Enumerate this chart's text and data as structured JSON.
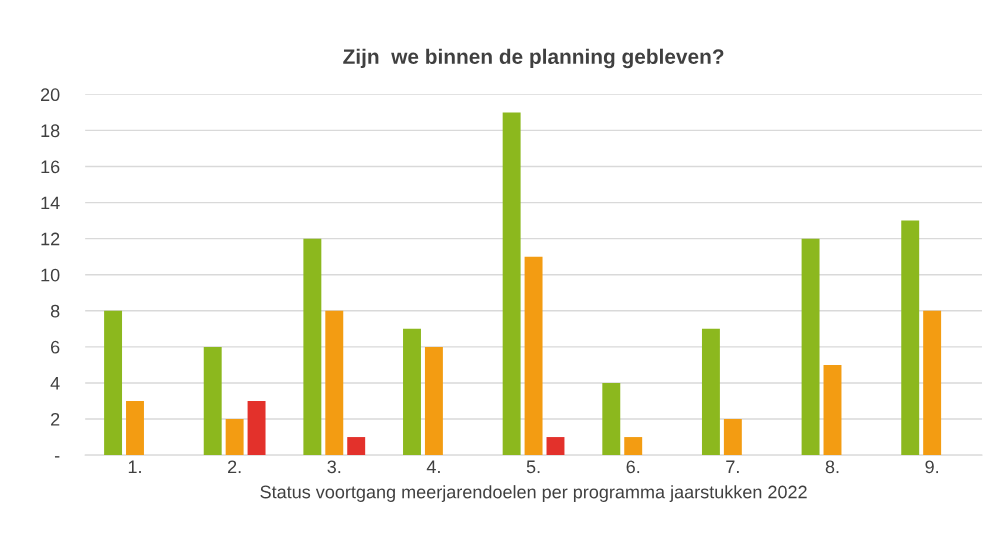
{
  "chart_data": {
    "type": "bar",
    "title": "Zijn  we binnen de planning gebleven?",
    "xlabel": "Status voortgang meerjarendoelen per programma jaarstukken 2022",
    "categories": [
      "1.",
      "2.",
      "3.",
      "4.",
      "5.",
      "6.",
      "7.",
      "8.",
      "9."
    ],
    "series": [
      {
        "color": "#8cb81e",
        "values": [
          8,
          6,
          12,
          7,
          19,
          4,
          7,
          12,
          13
        ]
      },
      {
        "color": "#f39c12",
        "values": [
          3,
          2,
          8,
          6,
          11,
          1,
          2,
          5,
          8
        ]
      },
      {
        "color": "#e3312b",
        "values": [
          null,
          3,
          1,
          null,
          1,
          null,
          null,
          null,
          null
        ]
      }
    ],
    "ylim": [
      0,
      20
    ],
    "yticks": [
      {
        "value": 0,
        "label": "-"
      },
      2,
      4,
      6,
      8,
      10,
      12,
      14,
      16,
      18,
      20
    ],
    "grid": "y"
  }
}
